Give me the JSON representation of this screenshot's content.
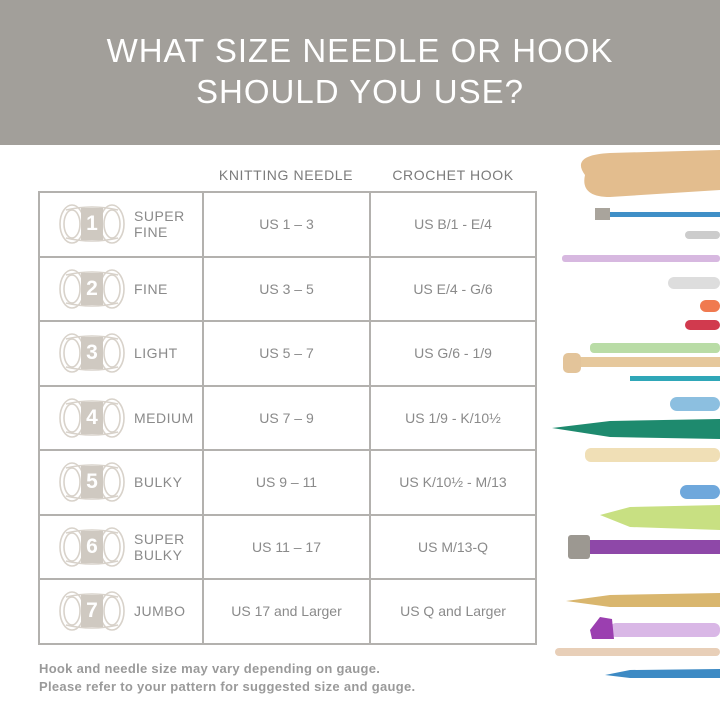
{
  "header": {
    "title_line1": "WHAT SIZE NEEDLE OR HOOK",
    "title_line2": "SHOULD YOU USE?"
  },
  "columns": {
    "knitting": "KNITTING NEEDLE",
    "crochet": "CROCHET HOOK"
  },
  "rows": [
    {
      "num": "1",
      "weight_line1": "SUPER",
      "weight_line2": "FINE",
      "knitting": "US 1 – 3",
      "crochet": "US B/1 - E/4"
    },
    {
      "num": "2",
      "weight_line1": "FINE",
      "weight_line2": "",
      "knitting": "US 3 – 5",
      "crochet": "US E/4 - G/6"
    },
    {
      "num": "3",
      "weight_line1": "LIGHT",
      "weight_line2": "",
      "knitting": "US 5 – 7",
      "crochet": "US G/6 - 1/9"
    },
    {
      "num": "4",
      "weight_line1": "MEDIUM",
      "weight_line2": "",
      "knitting": "US 7 – 9",
      "crochet": "US 1/9 - K/10½"
    },
    {
      "num": "5",
      "weight_line1": "BULKY",
      "weight_line2": "",
      "knitting": "US 9 – 11",
      "crochet": "US K/10½ - M/13"
    },
    {
      "num": "6",
      "weight_line1": "SUPER",
      "weight_line2": "BULKY",
      "knitting": "US 11 – 17",
      "crochet": "US M/13-Q"
    },
    {
      "num": "7",
      "weight_line1": "JUMBO",
      "weight_line2": "",
      "knitting": "US 17 and Larger",
      "crochet": "US Q and Larger"
    }
  ],
  "footer": {
    "line1": "Hook and needle size may vary depending on gauge.",
    "line2": "Please refer to your pattern for suggested size and gauge."
  },
  "colors": {
    "header_bg": "#a29f9a",
    "badge": "#cfc9c1",
    "border": "#b3b1ae"
  }
}
